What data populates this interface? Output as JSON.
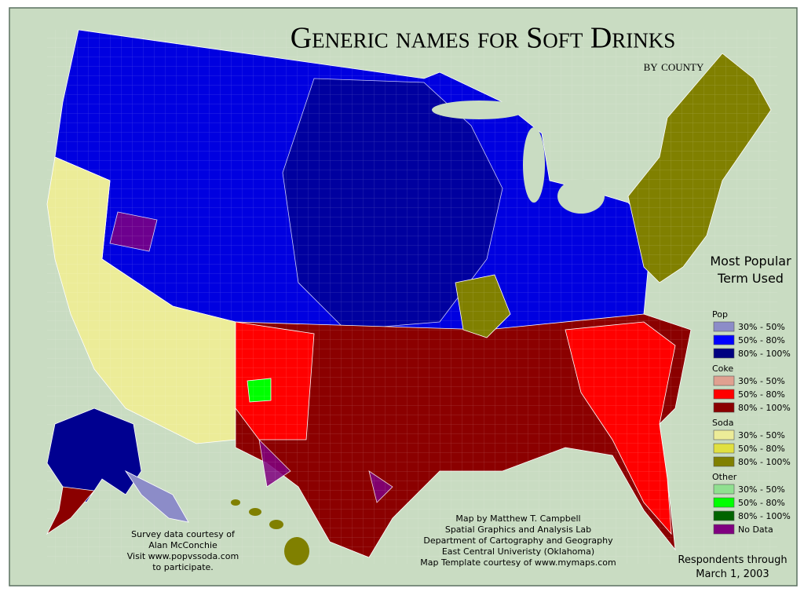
{
  "header": {
    "title": "Generic names for Soft Drinks",
    "subtitle": "by county"
  },
  "legend": {
    "title_lines": [
      "Most Popular",
      "Term Used"
    ],
    "groups": [
      {
        "name": "Pop",
        "items": [
          {
            "label": "30% - 50%",
            "color": "#8c8cc8"
          },
          {
            "label": "50% - 80%",
            "color": "#0000ff"
          },
          {
            "label": "80% - 100%",
            "color": "#000080"
          }
        ]
      },
      {
        "name": "Coke",
        "items": [
          {
            "label": "30% - 50%",
            "color": "#e0a090"
          },
          {
            "label": "50% - 80%",
            "color": "#ff0000"
          },
          {
            "label": "80% - 100%",
            "color": "#8b0000"
          }
        ]
      },
      {
        "name": "Soda",
        "items": [
          {
            "label": "30% - 50%",
            "color": "#ecec98"
          },
          {
            "label": "50% - 80%",
            "color": "#e0e040"
          },
          {
            "label": "80% - 100%",
            "color": "#808000"
          }
        ]
      },
      {
        "name": "Other",
        "items": [
          {
            "label": "30% - 50%",
            "color": "#90e090"
          },
          {
            "label": "50% - 80%",
            "color": "#00ff00"
          },
          {
            "label": "80% - 100%",
            "color": "#006400"
          }
        ]
      }
    ],
    "no_data": {
      "label": "No Data",
      "color": "#800080"
    }
  },
  "survey_credit": [
    "Survey data courtesy of",
    "Alan McConchie",
    "Visit www.popvssoda.com",
    "to participate."
  ],
  "map_credit": [
    "Map by Matthew T. Campbell",
    "Spatial Graphics and Analysis Lab",
    "Department of Cartography and Geography",
    "East Central Univeristy (Oklahoma)",
    "Map Template courtesy of www.mymaps.com"
  ],
  "respondents": [
    "Respondents through",
    "March 1, 2003"
  ]
}
